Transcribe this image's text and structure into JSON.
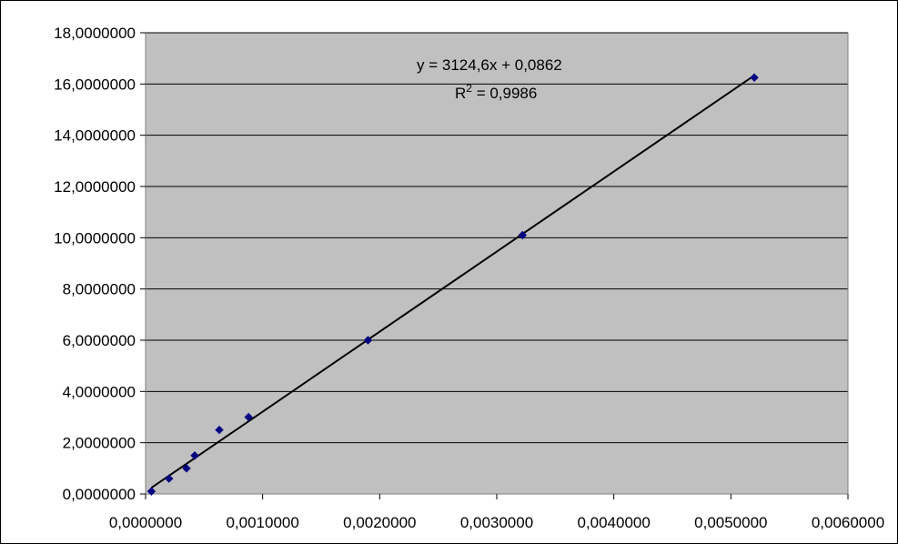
{
  "chart_data": {
    "type": "scatter",
    "title": "",
    "xlabel": "",
    "ylabel": "",
    "xlim": [
      0,
      0.006
    ],
    "ylim": [
      0,
      18
    ],
    "x_ticks": [
      0,
      0.001,
      0.002,
      0.003,
      0.004,
      0.005,
      0.006
    ],
    "y_ticks": [
      0,
      2,
      4,
      6,
      8,
      10,
      12,
      14,
      16,
      18
    ],
    "x_tick_labels": [
      "0,0000000",
      "0,0010000",
      "0,0020000",
      "0,0030000",
      "0,0040000",
      "0,0050000",
      "0,0060000"
    ],
    "y_tick_labels": [
      "0,0000000",
      "2,0000000",
      "4,0000000",
      "6,0000000",
      "8,0000000",
      "10,0000000",
      "12,0000000",
      "14,0000000",
      "16,0000000",
      "18,0000000"
    ],
    "grid": "horizontal",
    "legend": "none",
    "series": [
      {
        "x": [
          5e-05,
          0.0002,
          0.00035,
          0.00042,
          0.00063,
          0.00088,
          0.0019,
          0.00322,
          0.0052
        ],
        "y": [
          0.1,
          0.6,
          1.0,
          1.5,
          2.5,
          3.0,
          6.0,
          10.1,
          16.25
        ],
        "marker": "diamond",
        "color": "#000080"
      }
    ],
    "trendline": {
      "type": "linear",
      "slope": 3124.6,
      "intercept": 0.0862,
      "x_range": [
        5e-05,
        0.0052
      ],
      "color": "#000000"
    },
    "annotations": {
      "equation": "y = 3124,6x + 0,0862",
      "r2_label": "R",
      "r2_exp": "2",
      "r2_rest": " = 0,9986"
    },
    "colors": {
      "plot_background": "#c0c0c0",
      "gridline": "#000000",
      "marker": "#000080"
    }
  }
}
